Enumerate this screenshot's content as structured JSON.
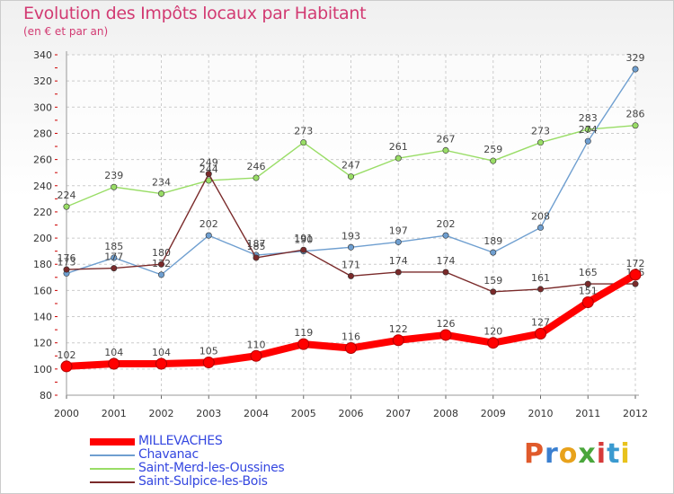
{
  "header": {
    "title": "Evolution des Impôts locaux par Habitant",
    "subtitle": "(en € et par an)"
  },
  "logo": {
    "text": "Proxiti",
    "colors": [
      "#e05a2b",
      "#3a7fd0",
      "#e8a21c",
      "#4aa63c",
      "#d63a3a",
      "#3a9ad0",
      "#e8c21c"
    ]
  },
  "colors": {
    "title": "#d23a72",
    "legend_text": "#3447e0",
    "grid": "#cccccc",
    "axis_red_ticks": "#cc0000"
  },
  "chart_data": {
    "type": "line",
    "title": "Evolution des Impôts locaux par Habitant",
    "subtitle": "(en € et par an)",
    "x": [
      "2000",
      "2001",
      "2002",
      "2003",
      "2004",
      "2005",
      "2006",
      "2007",
      "2008",
      "2009",
      "2010",
      "2011",
      "2012"
    ],
    "y_ticks": [
      "80",
      "100",
      "120",
      "140",
      "160",
      "180",
      "200",
      "220",
      "240",
      "260",
      "280",
      "300",
      "320",
      "340"
    ],
    "ylim": [
      80,
      340
    ],
    "grid": true,
    "legend_position": "bottom-left",
    "series": [
      {
        "name": "MILLEVACHES",
        "color": "#ff0000",
        "values": [
          102,
          104,
          104,
          105,
          110,
          119,
          116,
          122,
          126,
          120,
          127,
          151,
          172
        ],
        "labels": [
          "102",
          "104",
          "104",
          "105",
          "110",
          "119",
          "116",
          "122",
          "126",
          "120",
          "127",
          "151",
          "172"
        ]
      },
      {
        "name": "Chavanac",
        "color": "#6f9fd0",
        "values": [
          173,
          185,
          172,
          202,
          187,
          190,
          193,
          197,
          202,
          189,
          208,
          274,
          329
        ],
        "labels": [
          "173",
          "185",
          "172",
          "202",
          "187",
          "190",
          "193",
          "197",
          "202",
          "189",
          "208",
          "274",
          "329"
        ]
      },
      {
        "name": "Saint-Merd-les-Oussines",
        "color": "#99dd66",
        "values": [
          224,
          239,
          234,
          244,
          246,
          273,
          247,
          261,
          267,
          259,
          273,
          283,
          286
        ],
        "labels": [
          "224",
          "239",
          "234",
          "244",
          "246",
          "273",
          "247",
          "261",
          "267",
          "259",
          "273",
          "283",
          "286"
        ]
      },
      {
        "name": "Saint-Sulpice-les-Bois",
        "color": "#7a2a2a",
        "values": [
          176,
          177,
          180,
          249,
          185,
          191,
          171,
          174,
          174,
          159,
          161,
          165,
          165
        ],
        "labels": [
          "176",
          "177",
          "180",
          "249",
          "185",
          "191",
          "171",
          "174",
          "174",
          "159",
          "161",
          "165",
          "165"
        ]
      }
    ]
  }
}
